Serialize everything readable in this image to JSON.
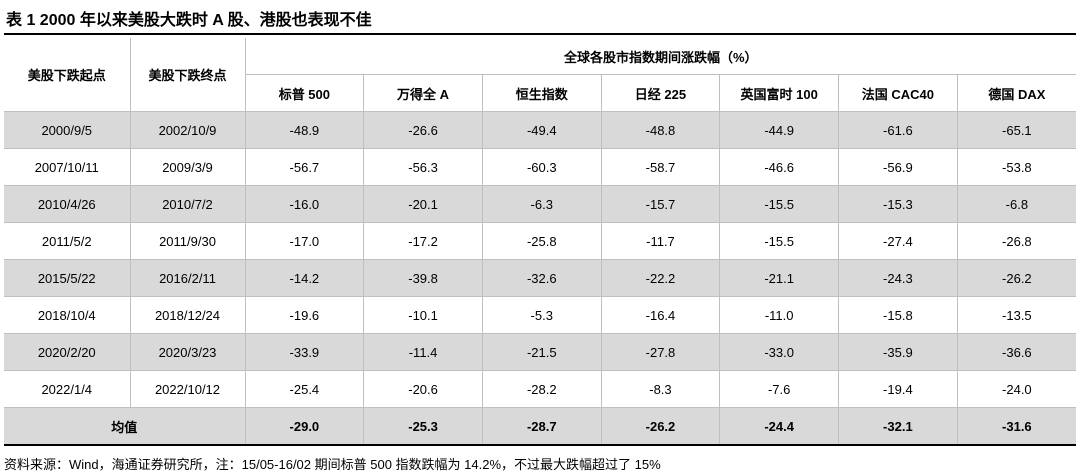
{
  "header": {
    "title": "表 1 2000 年以来美股大跌时 A 股、港股也表现不佳",
    "col_start": "美股下跌起点",
    "col_end": "美股下跌终点",
    "group": "全球各股市指数期间涨跌幅（%）",
    "cols": [
      "标普 500",
      "万得全 A",
      "恒生指数",
      "日经 225",
      "英国富时 100",
      "法国 CAC40",
      "德国 DAX"
    ]
  },
  "table": {
    "rows": [
      [
        "2000/9/5",
        "2002/10/9",
        "-48.9",
        "-26.6",
        "-49.4",
        "-48.8",
        "-44.9",
        "-61.6",
        "-65.1"
      ],
      [
        "2007/10/11",
        "2009/3/9",
        "-56.7",
        "-56.3",
        "-60.3",
        "-58.7",
        "-46.6",
        "-56.9",
        "-53.8"
      ],
      [
        "2010/4/26",
        "2010/7/2",
        "-16.0",
        "-20.1",
        "-6.3",
        "-15.7",
        "-15.5",
        "-15.3",
        "-6.8"
      ],
      [
        "2011/5/2",
        "2011/9/30",
        "-17.0",
        "-17.2",
        "-25.8",
        "-11.7",
        "-15.5",
        "-27.4",
        "-26.8"
      ],
      [
        "2015/5/22",
        "2016/2/11",
        "-14.2",
        "-39.8",
        "-32.6",
        "-22.2",
        "-21.1",
        "-24.3",
        "-26.2"
      ],
      [
        "2018/10/4",
        "2018/12/24",
        "-19.6",
        "-10.1",
        "-5.3",
        "-16.4",
        "-11.0",
        "-15.8",
        "-13.5"
      ],
      [
        "2020/2/20",
        "2020/3/23",
        "-33.9",
        "-11.4",
        "-21.5",
        "-27.8",
        "-33.0",
        "-35.9",
        "-36.6"
      ],
      [
        "2022/1/4",
        "2022/10/12",
        "-25.4",
        "-20.6",
        "-28.2",
        "-8.3",
        "-7.6",
        "-19.4",
        "-24.0"
      ]
    ],
    "mean_label": "均值",
    "mean": [
      "-29.0",
      "-25.3",
      "-28.7",
      "-26.2",
      "-24.4",
      "-32.1",
      "-31.6"
    ]
  },
  "footnote": "资料来源：Wind，海通证券研究所，注：15/05-16/02 期间标普 500 指数跌幅为 14.2%，不过最大跌幅超过了 15%"
}
